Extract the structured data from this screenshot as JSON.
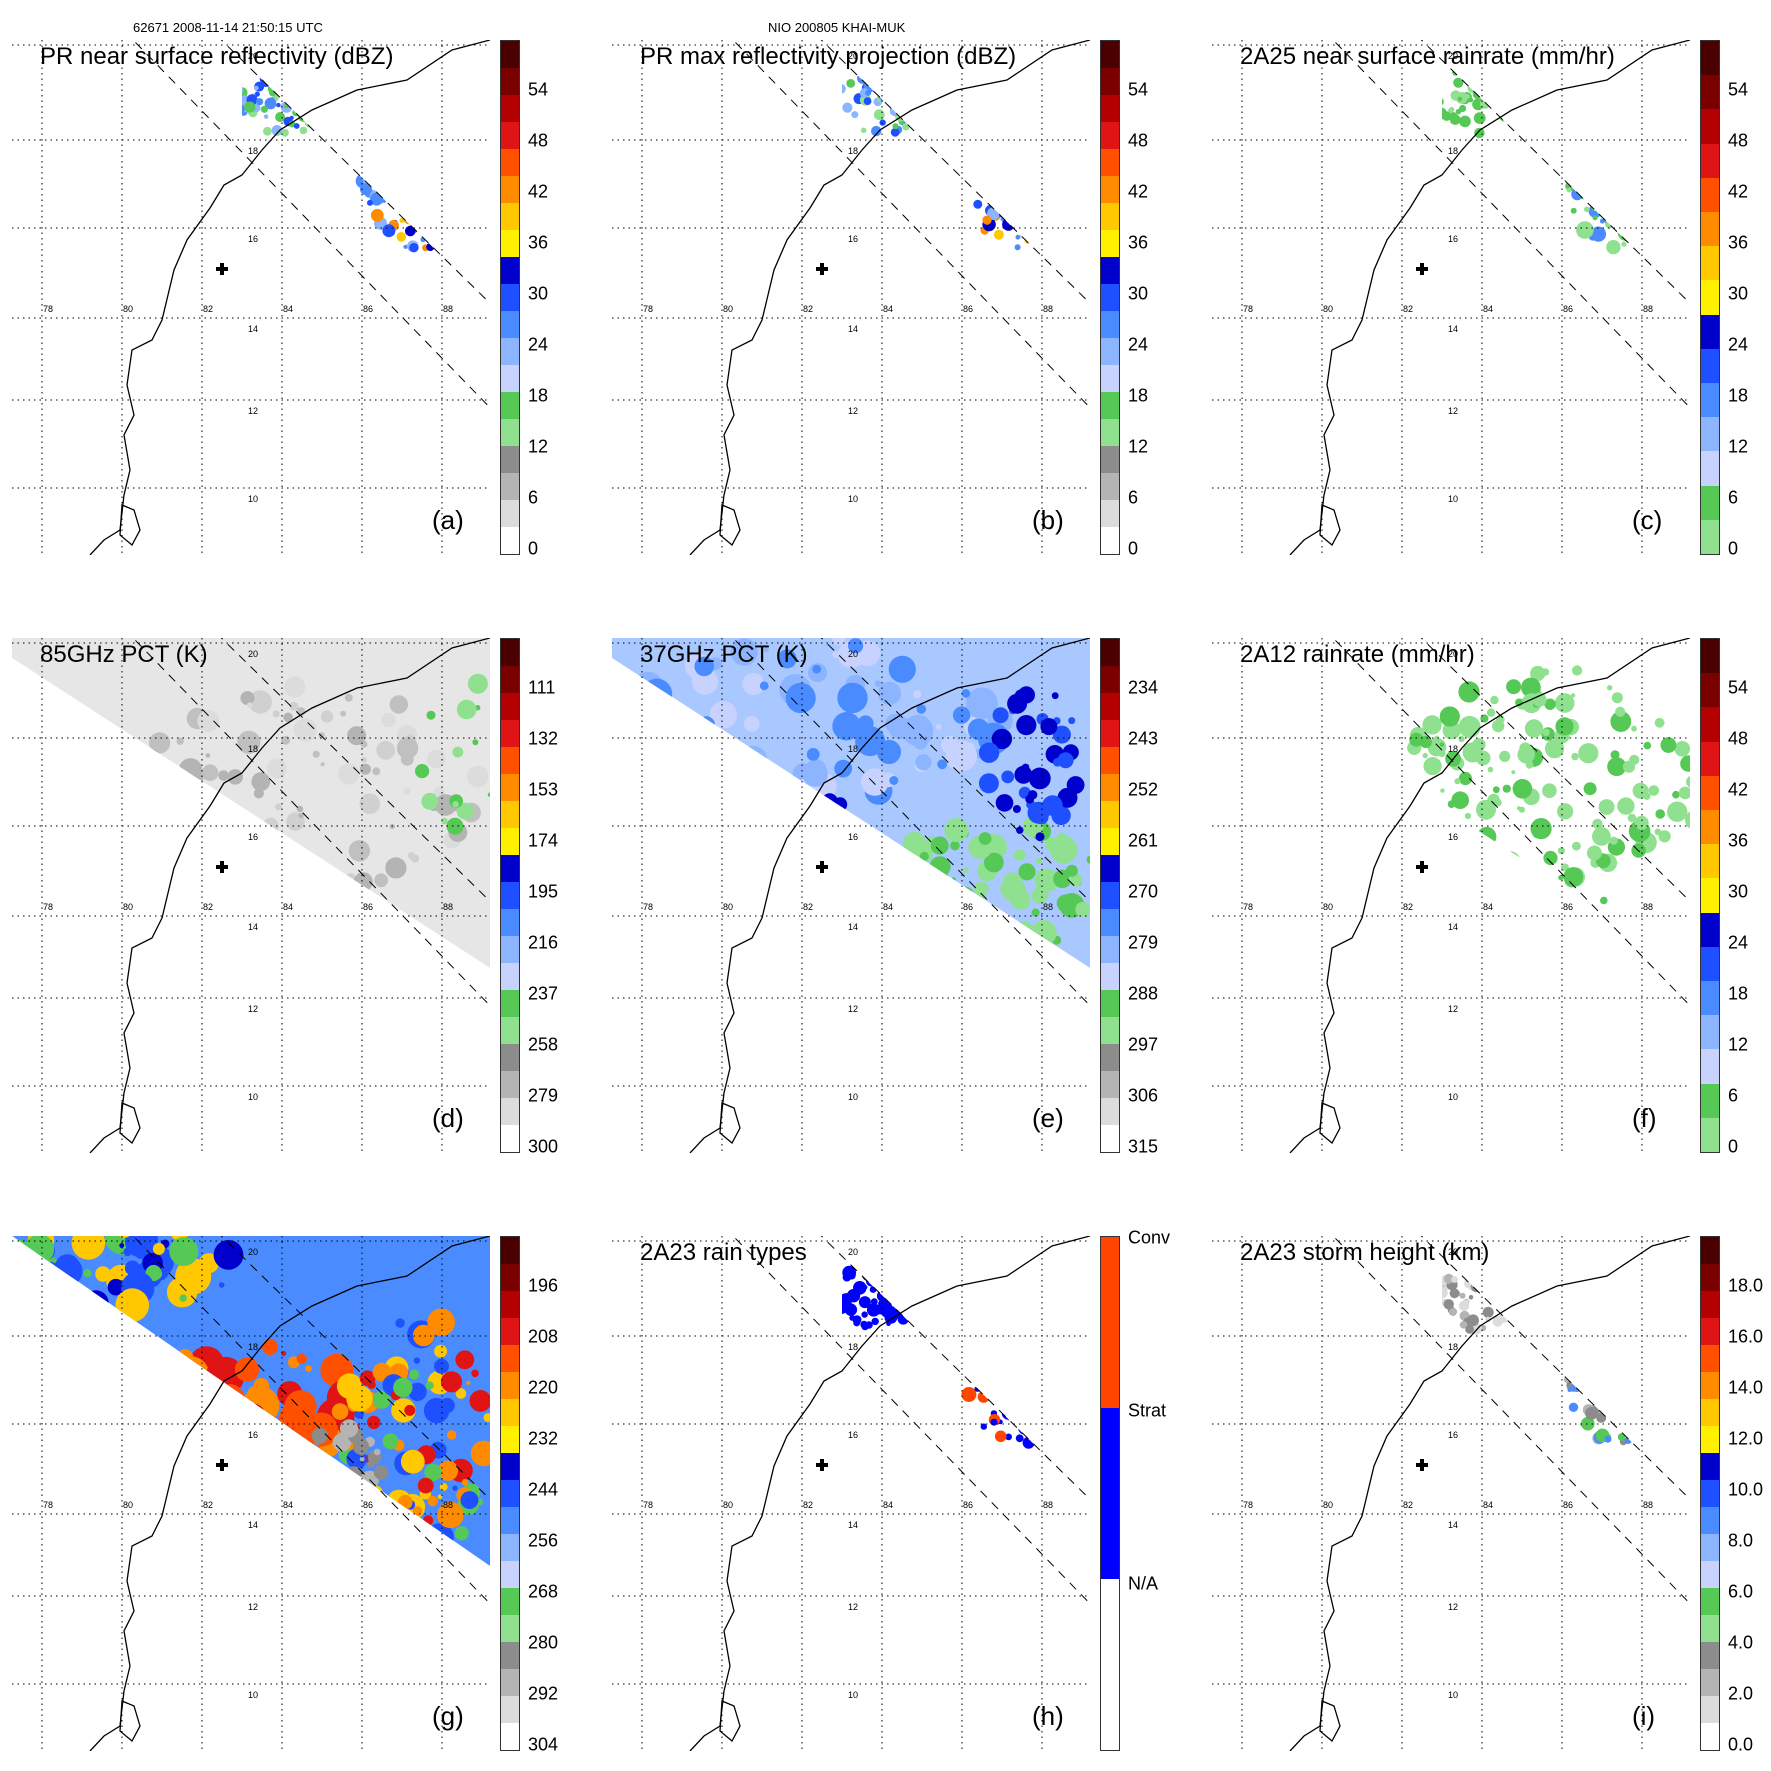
{
  "header": {
    "left": "62671 2008-11-14 21:50:15 UTC",
    "center": "NIO 200805 KHAI-MUK"
  },
  "map": {
    "lon_labels": [
      "78",
      "80",
      "82",
      "84",
      "86",
      "88"
    ],
    "lat_labels": [
      "20",
      "18",
      "16",
      "14",
      "12",
      "10"
    ]
  },
  "panels": [
    {
      "id": "a",
      "title": "PR near surface reflectivity (dBZ)",
      "label": "(a)",
      "ticks": [
        "54",
        "48",
        "42",
        "36",
        "30",
        "24",
        "18",
        "12",
        "6",
        "0"
      ],
      "colors": [
        "#ffffff",
        "#dcdcdc",
        "#b4b4b4",
        "#8c8c8c",
        "#8fe08f",
        "#55c855",
        "#c8d2ff",
        "#8cb4ff",
        "#4a8cff",
        "#1e50ff",
        "#0000cc",
        "#fff000",
        "#ffc800",
        "#ff8c00",
        "#ff5000",
        "#e01414",
        "#b40000",
        "#7a0000",
        "#4a0000"
      ]
    },
    {
      "id": "b",
      "title": "PR max reflectivity projection (dBZ)",
      "label": "(b)",
      "ticks": [
        "54",
        "48",
        "42",
        "36",
        "30",
        "24",
        "18",
        "12",
        "6",
        "0"
      ],
      "colors": [
        "#ffffff",
        "#dcdcdc",
        "#b4b4b4",
        "#8c8c8c",
        "#8fe08f",
        "#55c855",
        "#c8d2ff",
        "#8cb4ff",
        "#4a8cff",
        "#1e50ff",
        "#0000cc",
        "#fff000",
        "#ffc800",
        "#ff8c00",
        "#ff5000",
        "#e01414",
        "#b40000",
        "#7a0000",
        "#4a0000"
      ]
    },
    {
      "id": "c",
      "title": "2A25 near surface rainrate (mm/hr)",
      "label": "(c)",
      "ticks": [
        "54",
        "48",
        "42",
        "36",
        "30",
        "24",
        "18",
        "12",
        "6",
        "0"
      ],
      "colors": [
        "#8fe08f",
        "#55c855",
        "#c8d2ff",
        "#8cb4ff",
        "#4a8cff",
        "#1e50ff",
        "#0000cc",
        "#fff000",
        "#ffc800",
        "#ff8c00",
        "#ff5000",
        "#e01414",
        "#b40000",
        "#7a0000",
        "#4a0000"
      ]
    },
    {
      "id": "d",
      "title": "85GHz PCT (K)",
      "label": "(d)",
      "ticks": [
        "111",
        "132",
        "153",
        "174",
        "195",
        "216",
        "237",
        "258",
        "279",
        "300"
      ],
      "colors": [
        "#ffffff",
        "#dcdcdc",
        "#b4b4b4",
        "#8c8c8c",
        "#8fe08f",
        "#55c855",
        "#c8d2ff",
        "#8cb4ff",
        "#4a8cff",
        "#1e50ff",
        "#0000cc",
        "#fff000",
        "#ffc800",
        "#ff8c00",
        "#ff5000",
        "#e01414",
        "#b40000",
        "#7a0000",
        "#4a0000"
      ]
    },
    {
      "id": "e",
      "title": "37GHz PCT (K)",
      "label": "(e)",
      "ticks": [
        "234",
        "243",
        "252",
        "261",
        "270",
        "279",
        "288",
        "297",
        "306",
        "315"
      ],
      "colors": [
        "#ffffff",
        "#dcdcdc",
        "#b4b4b4",
        "#8c8c8c",
        "#8fe08f",
        "#55c855",
        "#c8d2ff",
        "#8cb4ff",
        "#4a8cff",
        "#1e50ff",
        "#0000cc",
        "#fff000",
        "#ffc800",
        "#ff8c00",
        "#ff5000",
        "#e01414",
        "#b40000",
        "#7a0000",
        "#4a0000"
      ]
    },
    {
      "id": "f",
      "title": "2A12 rainrate (mm/hr)",
      "label": "(f)",
      "ticks": [
        "54",
        "48",
        "42",
        "36",
        "30",
        "24",
        "18",
        "12",
        "6",
        "0"
      ],
      "colors": [
        "#8fe08f",
        "#55c855",
        "#c8d2ff",
        "#8cb4ff",
        "#4a8cff",
        "#1e50ff",
        "#0000cc",
        "#fff000",
        "#ffc800",
        "#ff8c00",
        "#ff5000",
        "#e01414",
        "#b40000",
        "#7a0000",
        "#4a0000"
      ]
    },
    {
      "id": "g",
      "title": "",
      "label": "(g)",
      "ticks": [
        "196",
        "208",
        "220",
        "232",
        "244",
        "256",
        "268",
        "280",
        "292",
        "304"
      ],
      "colors": [
        "#ffffff",
        "#dcdcdc",
        "#b4b4b4",
        "#8c8c8c",
        "#8fe08f",
        "#55c855",
        "#c8d2ff",
        "#8cb4ff",
        "#4a8cff",
        "#1e50ff",
        "#0000cc",
        "#fff000",
        "#ffc800",
        "#ff8c00",
        "#ff5000",
        "#e01414",
        "#b40000",
        "#7a0000",
        "#4a0000"
      ]
    },
    {
      "id": "h",
      "title": "2A23 rain types",
      "label": "(h)",
      "ticks": [
        "Conv",
        "Strat",
        "N/A"
      ],
      "colors": [
        "#ffffff",
        "#0000ff",
        "#ff4500"
      ]
    },
    {
      "id": "i",
      "title": "2A23 storm height (km)",
      "label": "(i)",
      "ticks": [
        "18.0",
        "16.0",
        "14.0",
        "12.0",
        "10.0",
        "8.0",
        "6.0",
        "4.0",
        "2.0",
        "0.0"
      ],
      "colors": [
        "#ffffff",
        "#dcdcdc",
        "#b4b4b4",
        "#8c8c8c",
        "#8fe08f",
        "#55c855",
        "#c8d2ff",
        "#8cb4ff",
        "#4a8cff",
        "#1e50ff",
        "#0000cc",
        "#fff000",
        "#ffc800",
        "#ff8c00",
        "#ff5000",
        "#e01414",
        "#b40000",
        "#7a0000",
        "#4a0000"
      ]
    }
  ]
}
